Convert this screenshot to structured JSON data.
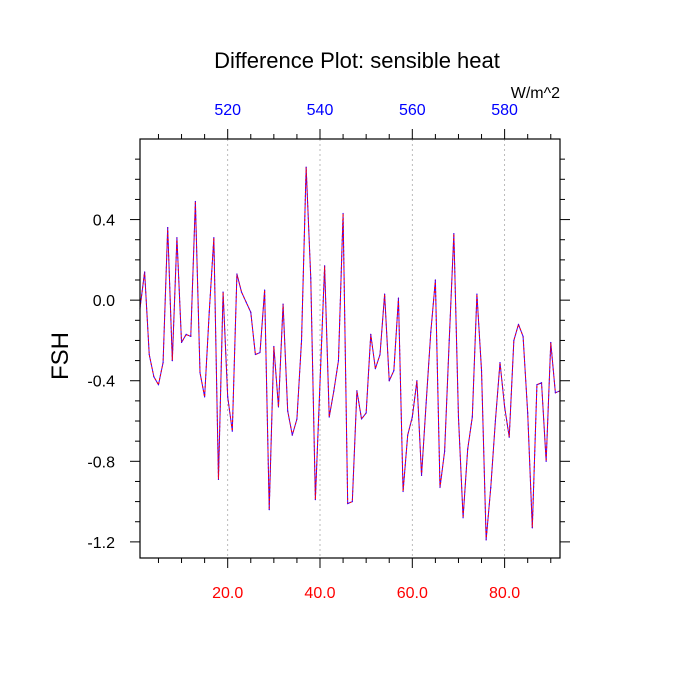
{
  "chart_data": {
    "type": "line",
    "title": "Difference Plot: sensible heat",
    "ylabel": "FSH",
    "units_label": "W/m^2",
    "xlim": [
      1,
      92
    ],
    "ylim": [
      -1.28,
      0.8
    ],
    "yticks": [
      0.4,
      0.0,
      -0.4,
      -0.8,
      -1.2
    ],
    "ytick_labels": [
      "0.4",
      "0.0",
      "-0.4",
      "-0.8",
      "-1.2"
    ],
    "yminor_step": 0.1,
    "xticks_bottom": [
      20,
      40,
      60,
      80
    ],
    "xtick_labels_bottom": [
      "20.0",
      "40.0",
      "60.0",
      "80.0"
    ],
    "xminor_step": 5,
    "xticks_top": [
      20,
      40,
      60,
      80
    ],
    "xtick_labels_top": [
      "520",
      "540",
      "560",
      "580"
    ],
    "grid_x": true,
    "colors": {
      "line_dash": "#ff0000",
      "line_solid": "#3a00ff",
      "bottom_labels": "#ff0000",
      "top_labels": "#0000ff",
      "grid": "#aaaaaa"
    },
    "x": [
      1,
      2,
      3,
      4,
      5,
      6,
      7,
      8,
      9,
      10,
      11,
      12,
      13,
      14,
      15,
      16,
      17,
      18,
      19,
      20,
      21,
      22,
      23,
      24,
      25,
      26,
      27,
      28,
      29,
      30,
      31,
      32,
      33,
      34,
      35,
      36,
      37,
      38,
      39,
      40,
      41,
      42,
      43,
      44,
      45,
      46,
      47,
      48,
      49,
      50,
      51,
      52,
      53,
      54,
      55,
      56,
      57,
      58,
      59,
      60,
      61,
      62,
      63,
      64,
      65,
      66,
      67,
      68,
      69,
      70,
      71,
      72,
      73,
      74,
      75,
      76,
      77,
      78,
      79,
      80,
      81,
      82,
      83,
      84,
      85,
      86,
      87,
      88,
      89,
      90,
      91,
      92
    ],
    "series": [
      {
        "values": [
          -0.04,
          0.14,
          -0.27,
          -0.38,
          -0.42,
          -0.31,
          0.36,
          -0.3,
          0.31,
          -0.21,
          -0.17,
          -0.18,
          0.49,
          -0.36,
          -0.48,
          -0.06,
          0.31,
          -0.89,
          0.04,
          -0.48,
          -0.65,
          0.13,
          0.04,
          -0.01,
          -0.06,
          -0.27,
          -0.26,
          0.05,
          -1.04,
          -0.23,
          -0.53,
          -0.02,
          -0.55,
          -0.67,
          -0.59,
          -0.2,
          0.66,
          0.11,
          -0.99,
          -0.41,
          0.17,
          -0.58,
          -0.45,
          -0.3,
          0.43,
          -1.01,
          -1.0,
          -0.45,
          -0.59,
          -0.56,
          -0.17,
          -0.34,
          -0.27,
          0.03,
          -0.4,
          -0.35,
          0.01,
          -0.95,
          -0.67,
          -0.58,
          -0.4,
          -0.87,
          -0.51,
          -0.16,
          0.1,
          -0.93,
          -0.75,
          -0.2,
          0.33,
          -0.58,
          -1.08,
          -0.74,
          -0.58,
          0.03,
          -0.35,
          -1.19,
          -0.93,
          -0.6,
          -0.31,
          -0.53,
          -0.68,
          -0.2,
          -0.12,
          -0.18,
          -0.56,
          -1.13,
          -0.42,
          -0.41,
          -0.8,
          -0.21,
          -0.46,
          -0.45
        ]
      }
    ]
  }
}
